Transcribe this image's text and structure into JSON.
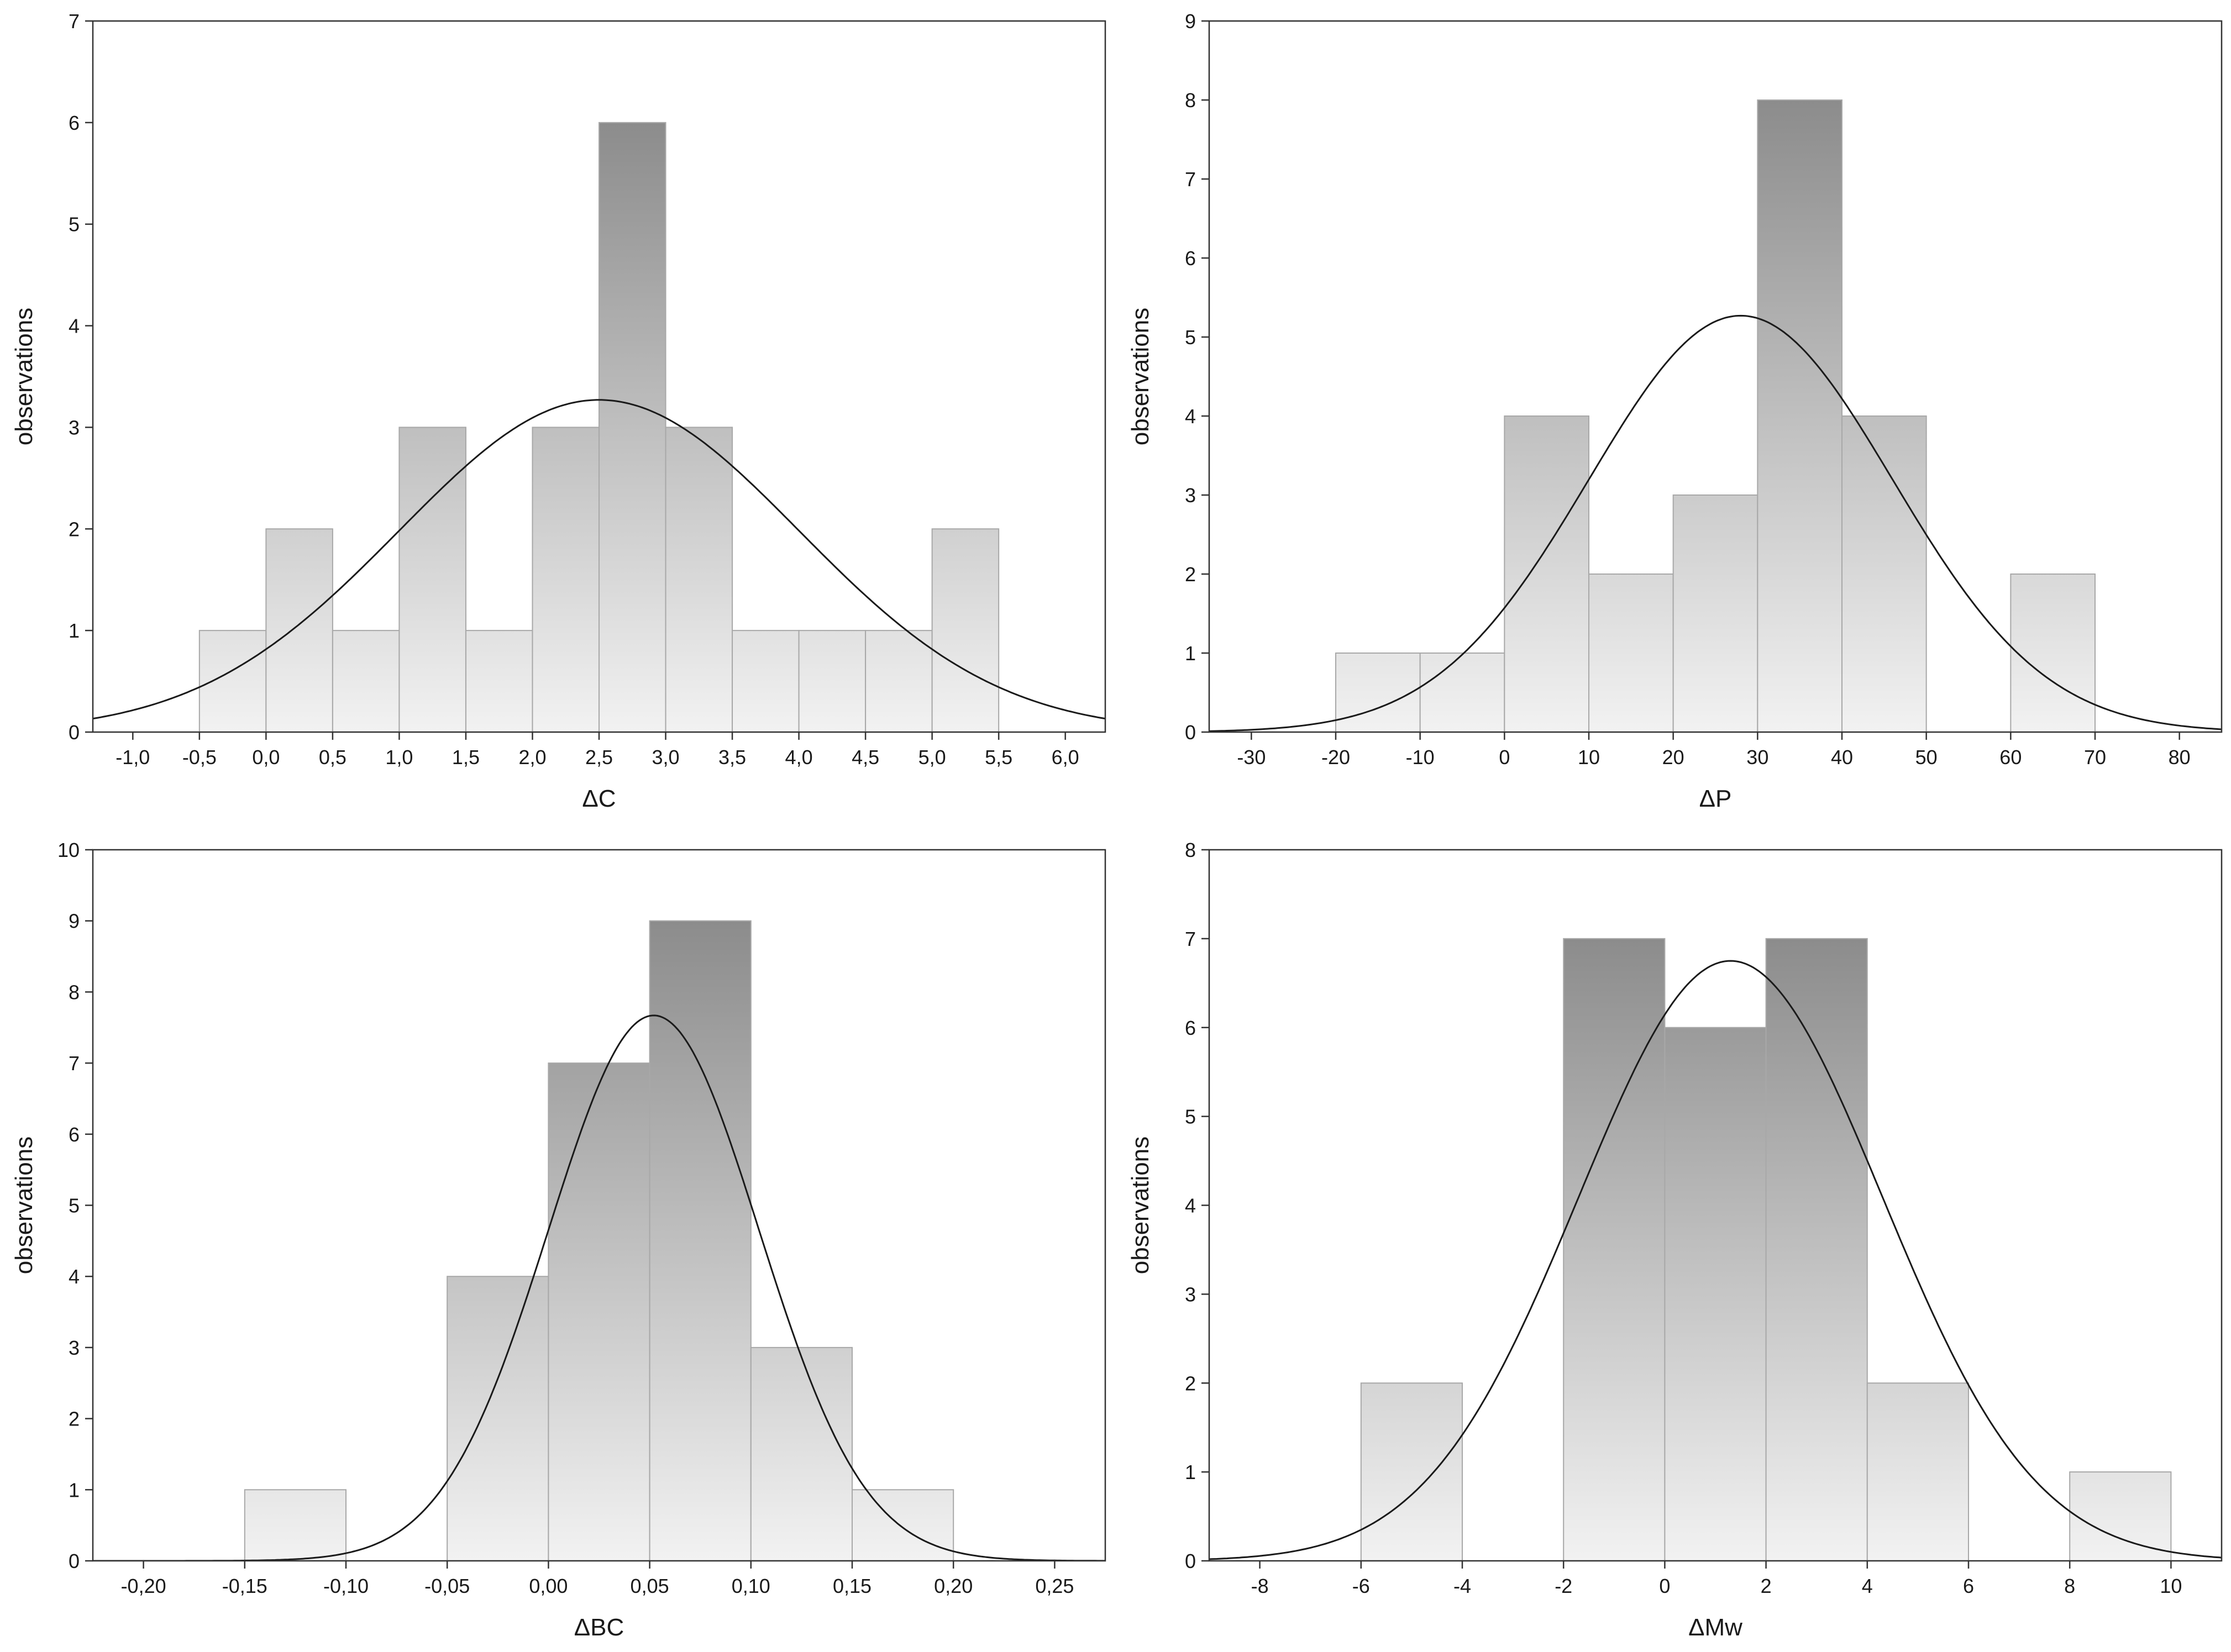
{
  "chart_data": [
    {
      "type": "bar",
      "subtype": "histogram",
      "id": "dc",
      "xlabel": "ΔC",
      "ylabel": "observations",
      "xlim": [
        -1.3,
        6.3
      ],
      "ylim": [
        0,
        7
      ],
      "x_ticks": [
        -1.0,
        -0.5,
        0.0,
        0.5,
        1.0,
        1.5,
        2.0,
        2.5,
        3.0,
        3.5,
        4.0,
        4.5,
        5.0,
        5.5,
        6.0
      ],
      "x_tick_labels": [
        "-1,0",
        "-0,5",
        "0,0",
        "0,5",
        "1,0",
        "1,5",
        "2,0",
        "2,5",
        "3,0",
        "3,5",
        "4,0",
        "4,5",
        "5,0",
        "5,5",
        "6,0"
      ],
      "y_ticks": [
        0,
        1,
        2,
        3,
        4,
        5,
        6,
        7
      ],
      "y_tick_labels": [
        "0",
        "1",
        "2",
        "3",
        "4",
        "5",
        "6",
        "7"
      ],
      "bins": [
        -0.5,
        0.0,
        0.5,
        1.0,
        1.5,
        2.0,
        2.5,
        3.0,
        3.5,
        4.0,
        4.5,
        5.0,
        5.5
      ],
      "counts": [
        1,
        2,
        1,
        3,
        1,
        3,
        6,
        3,
        1,
        1,
        1,
        2
      ],
      "normal_fit": {
        "peak_x": 2.5,
        "peak_y": 3.27,
        "sigma": 1.5
      }
    },
    {
      "type": "bar",
      "subtype": "histogram",
      "id": "dp",
      "xlabel": "ΔP",
      "ylabel": "observations",
      "xlim": [
        -35,
        85
      ],
      "ylim": [
        0,
        9
      ],
      "x_ticks": [
        -30,
        -20,
        -10,
        0,
        10,
        20,
        30,
        40,
        50,
        60,
        70,
        80
      ],
      "x_tick_labels": [
        "-30",
        "-20",
        "-10",
        "0",
        "10",
        "20",
        "30",
        "40",
        "50",
        "60",
        "70",
        "80"
      ],
      "y_ticks": [
        0,
        1,
        2,
        3,
        4,
        5,
        6,
        7,
        8,
        9
      ],
      "y_tick_labels": [
        "0",
        "1",
        "2",
        "3",
        "4",
        "5",
        "6",
        "7",
        "8",
        "9"
      ],
      "bins": [
        -20,
        -10,
        0,
        10,
        20,
        30,
        40,
        50,
        60,
        70
      ],
      "counts": [
        1,
        1,
        4,
        2,
        3,
        8,
        4,
        0,
        2
      ],
      "normal_fit": {
        "peak_x": 28,
        "peak_y": 5.27,
        "sigma": 18
      }
    },
    {
      "type": "bar",
      "subtype": "histogram",
      "id": "dbc",
      "xlabel": "ΔBC",
      "ylabel": "observations",
      "xlim": [
        -0.225,
        0.275
      ],
      "ylim": [
        0,
        10
      ],
      "x_ticks": [
        -0.2,
        -0.15,
        -0.1,
        -0.05,
        0.0,
        0.05,
        0.1,
        0.15,
        0.2,
        0.25
      ],
      "x_tick_labels": [
        "-0,20",
        "-0,15",
        "-0,10",
        "-0,05",
        "0,00",
        "0,05",
        "0,10",
        "0,15",
        "0,20",
        "0,25"
      ],
      "y_ticks": [
        0,
        1,
        2,
        3,
        4,
        5,
        6,
        7,
        8,
        9,
        10
      ],
      "y_tick_labels": [
        "0",
        "1",
        "2",
        "3",
        "4",
        "5",
        "6",
        "7",
        "8",
        "9",
        "10"
      ],
      "bins": [
        -0.15,
        -0.1,
        -0.05,
        0.0,
        0.05,
        0.1,
        0.15,
        0.2
      ],
      "counts": [
        1,
        0,
        4,
        7,
        9,
        3,
        1
      ],
      "normal_fit": {
        "peak_x": 0.052,
        "peak_y": 7.67,
        "sigma": 0.052
      }
    },
    {
      "type": "bar",
      "subtype": "histogram",
      "id": "dmw",
      "xlabel": "ΔMw",
      "ylabel": "observations",
      "xlim": [
        -9,
        11
      ],
      "ylim": [
        0,
        8
      ],
      "x_ticks": [
        -8,
        -6,
        -4,
        -2,
        0,
        2,
        4,
        6,
        8,
        10
      ],
      "x_tick_labels": [
        "-8",
        "-6",
        "-4",
        "-2",
        "0",
        "2",
        "4",
        "6",
        "8",
        "10"
      ],
      "y_ticks": [
        0,
        1,
        2,
        3,
        4,
        5,
        6,
        7,
        8
      ],
      "y_tick_labels": [
        "0",
        "1",
        "2",
        "3",
        "4",
        "5",
        "6",
        "7",
        "8"
      ],
      "bins": [
        -6,
        -4,
        -2,
        0,
        2,
        4,
        6,
        8,
        10
      ],
      "counts": [
        2,
        0,
        7,
        6,
        7,
        2,
        0,
        1
      ],
      "normal_fit": {
        "peak_x": 1.3,
        "peak_y": 6.75,
        "sigma": 3.0
      }
    }
  ],
  "colors": {
    "bar_light": "#f2f2f2",
    "bar_dark": "#8c8c8c",
    "bar_edge": "#a8a8a8",
    "curve": "#1a1a1a",
    "frame": "#333333"
  }
}
